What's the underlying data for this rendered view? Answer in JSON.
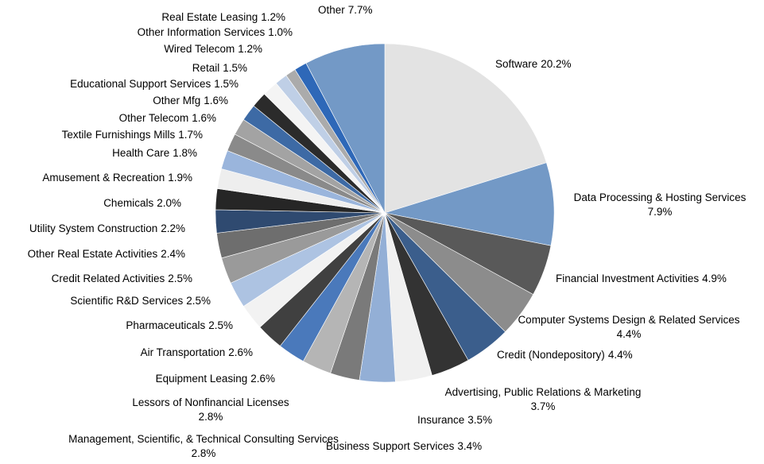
{
  "chart_data": {
    "type": "pie",
    "categories": [
      "Software",
      "Data Processing & Hosting Services",
      "Financial Investment Activities",
      "Computer Systems Design & Related Services",
      "Credit (Nondepository)",
      "Advertising, Public Relations & Marketing",
      "Insurance",
      "Business Support Services",
      "Management, Scientific, & Technical Consulting Services",
      "Lessors of Nonfinancial Licenses",
      "Equipment Leasing",
      "Air Transportation",
      "Pharmaceuticals",
      "Scientific R&D Services",
      "Credit Related Activities",
      "Other Real Estate Activities",
      "Utility System Construction",
      "Chemicals",
      "Amusement & Recreation",
      "Health Care",
      "Textile Furnishings Mills",
      "Other Telecom",
      "Other Mfg",
      "Educational Support Services",
      "Retail",
      "Wired Telecom",
      "Other Information Services",
      "Real Estate Leasing",
      "Other"
    ],
    "values": [
      20.2,
      7.9,
      4.9,
      4.4,
      4.4,
      3.7,
      3.5,
      3.4,
      2.8,
      2.8,
      2.6,
      2.6,
      2.5,
      2.5,
      2.5,
      2.4,
      2.2,
      2.0,
      1.9,
      1.8,
      1.7,
      1.6,
      1.6,
      1.5,
      1.5,
      1.2,
      1.0,
      1.2,
      7.7
    ],
    "value_labels": [
      "20.2%",
      "7.9%",
      "4.9%",
      "4.4%",
      "4.4%",
      "3.7%",
      "3.5%",
      "3.4%",
      "2.8%",
      "2.8%",
      "2.6%",
      "2.6%",
      "2.5%",
      "2.5%",
      "2.5%",
      "2.4%",
      "2.2%",
      "2.0%",
      "1.9%",
      "1.8%",
      "1.7%",
      "1.6%",
      "1.6%",
      "1.5%",
      "1.5%",
      "1.2%",
      "1.0%",
      "1.2%",
      "7.7%"
    ],
    "colors": [
      "#e3e3e3",
      "#7399c6",
      "#595959",
      "#8c8c8c",
      "#3b5e8c",
      "#333333",
      "#f0f0f0",
      "#93afd6",
      "#7a7a7a",
      "#b5b5b5",
      "#4a79bb",
      "#404040",
      "#f2f2f2",
      "#adc3e2",
      "#9a9a9a",
      "#6e6e6e",
      "#2f4a70",
      "#262626",
      "#eeeeee",
      "#9ab5dc",
      "#8a8a8a",
      "#a3a3a3",
      "#3d6aa5",
      "#2b2b2b",
      "#f4f4f4",
      "#bfcfe6",
      "#ababab",
      "#2e68b8",
      "#7399c6"
    ]
  }
}
